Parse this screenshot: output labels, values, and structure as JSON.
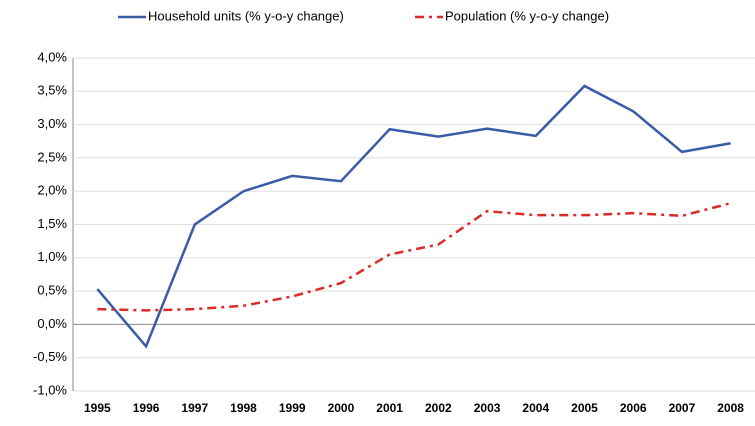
{
  "chart_data": {
    "type": "line",
    "categories": [
      "1995",
      "1996",
      "1997",
      "1998",
      "1999",
      "2000",
      "2001",
      "2002",
      "2003",
      "2004",
      "2005",
      "2006",
      "2007",
      "2008"
    ],
    "series": [
      {
        "name": "Household units (% y-o-y change)",
        "color": "#3a5ba8",
        "dash": "solid",
        "values": [
          0.53,
          -0.33,
          1.5,
          2.0,
          2.23,
          2.15,
          2.93,
          2.82,
          2.94,
          2.83,
          3.58,
          3.2,
          2.59,
          2.72
        ]
      },
      {
        "name": "Population (% y-o-y change)",
        "color": "#d92b27",
        "dash": "dash-dot",
        "values": [
          0.23,
          0.21,
          0.23,
          0.28,
          0.42,
          0.62,
          1.05,
          1.2,
          1.7,
          1.64,
          1.64,
          1.67,
          1.63,
          1.82
        ]
      }
    ],
    "ylim": [
      -1.0,
      4.0
    ],
    "yticks": [
      {
        "value": -1.0,
        "label": "-1,0%"
      },
      {
        "value": -0.5,
        "label": "-0,5%"
      },
      {
        "value": 0,
        "label": "0,0%"
      },
      {
        "value": 0.5,
        "label": "0,5%"
      },
      {
        "value": 1.0,
        "label": "1,0%"
      },
      {
        "value": 1.5,
        "label": "1,5%"
      },
      {
        "value": 2.0,
        "label": "2,0%"
      },
      {
        "value": 2.5,
        "label": "2,5%"
      },
      {
        "value": 3.0,
        "label": "3,0%"
      },
      {
        "value": 3.5,
        "label": "3,5%"
      },
      {
        "value": 4.0,
        "label": "4,0%"
      }
    ],
    "grid": true,
    "legend": "top"
  }
}
